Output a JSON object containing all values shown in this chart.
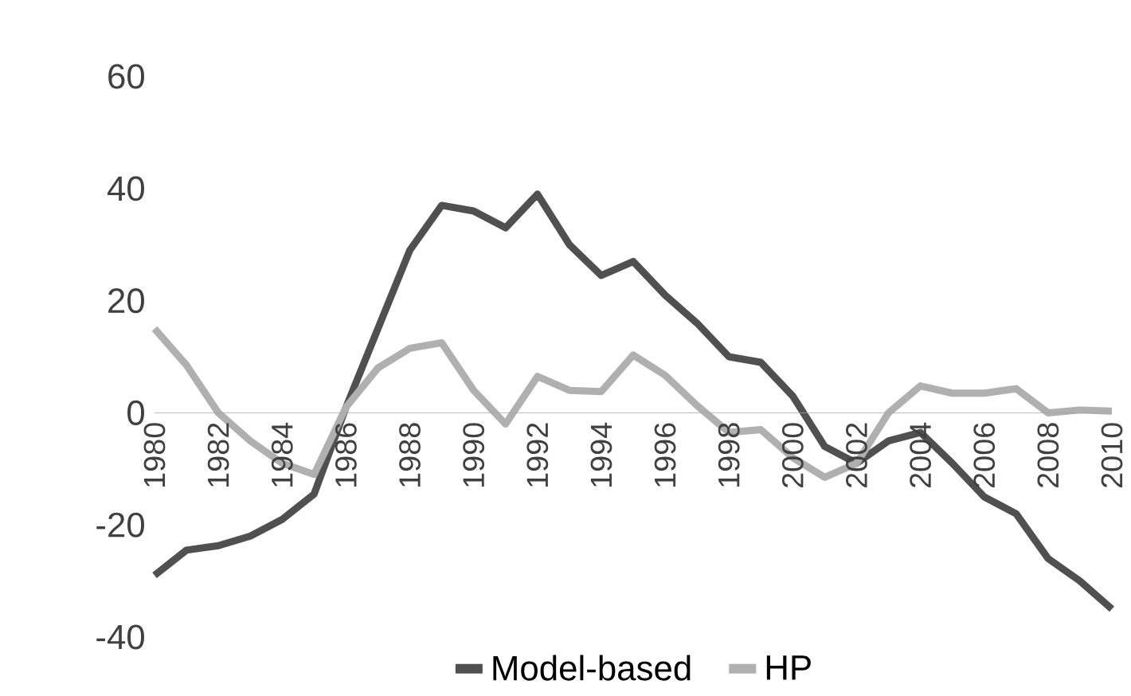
{
  "chart_data": {
    "type": "line",
    "x": [
      1980,
      1981,
      1982,
      1983,
      1984,
      1985,
      1986,
      1987,
      1988,
      1989,
      1990,
      1991,
      1992,
      1993,
      1994,
      1995,
      1996,
      1997,
      1998,
      1999,
      2000,
      2001,
      2002,
      2003,
      2004,
      2005,
      2006,
      2007,
      2008,
      2009,
      2010
    ],
    "series": [
      {
        "name": "Model-based",
        "color": "#505050",
        "values": [
          -29,
          -24.5,
          -23.7,
          -22,
          -19,
          -14.5,
          1,
          15,
          29,
          37,
          36,
          33,
          39,
          30,
          24.5,
          27,
          21,
          16,
          10,
          9,
          3,
          -6,
          -9,
          -5,
          -3.5,
          -9,
          -15,
          -18,
          -26,
          -30,
          -35
        ]
      },
      {
        "name": "HP",
        "color": "#b0b0b0",
        "values": [
          15,
          8.5,
          0,
          -5,
          -9,
          -11,
          1,
          8,
          11.5,
          12.5,
          4,
          -2,
          6.5,
          4,
          3.8,
          10.3,
          6.7,
          1.3,
          -3.5,
          -3,
          -8,
          -11.5,
          -9,
          0,
          4.8,
          3.5,
          3.5,
          4.3,
          0,
          0.5,
          0.3
        ]
      }
    ],
    "xlim": [
      1980,
      2010
    ],
    "xticks": [
      1980,
      1982,
      1984,
      1986,
      1988,
      1990,
      1992,
      1994,
      1996,
      1998,
      2000,
      2002,
      2004,
      2006,
      2008,
      2010
    ],
    "ylim": [
      -40,
      60
    ],
    "yticks": [
      -40,
      -20,
      0,
      20,
      40,
      60
    ],
    "legend": "bottom"
  }
}
